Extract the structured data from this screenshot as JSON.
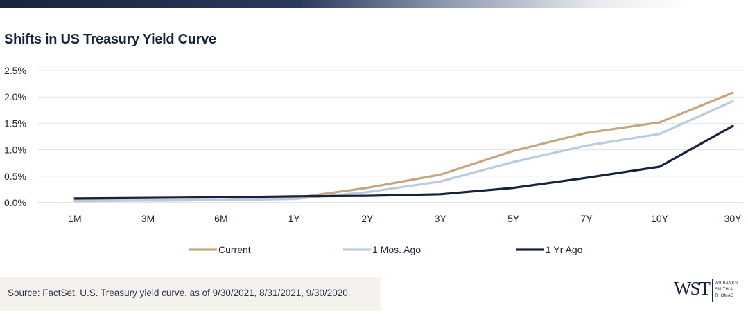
{
  "title": "Shifts in US Treasury Yield Curve",
  "source": "Source: FactSet. U.S. Treasury yield curve, as of 9/30/2021, 8/31/2021, 9/30/2020.",
  "logo": {
    "mark": "WST",
    "lines": [
      "WILBANKS",
      "SMITH &",
      "THOMAS"
    ]
  },
  "chart_data": {
    "type": "line",
    "title": "Shifts in US Treasury Yield Curve",
    "categories": [
      "1M",
      "3M",
      "6M",
      "1Y",
      "2Y",
      "3Y",
      "5Y",
      "7Y",
      "10Y",
      "30Y"
    ],
    "y_ticks": [
      "0.0%",
      "0.5%",
      "1.0%",
      "1.5%",
      "2.0%",
      "2.5%"
    ],
    "ylim": [
      0,
      2.5
    ],
    "y_unit": "%",
    "grid": true,
    "legend_position": "bottom",
    "series": [
      {
        "name": "Current",
        "color": "#c5a67f",
        "values": [
          0.04,
          0.04,
          0.05,
          0.09,
          0.28,
          0.53,
          0.98,
          1.32,
          1.52,
          2.08
        ]
      },
      {
        "name": "1 Mos. Ago",
        "color": "#b9cbe0",
        "values": [
          0.03,
          0.04,
          0.05,
          0.07,
          0.2,
          0.4,
          0.77,
          1.08,
          1.3,
          1.92
        ]
      },
      {
        "name": "1 Yr Ago",
        "color": "#17233b",
        "values": [
          0.08,
          0.09,
          0.1,
          0.12,
          0.13,
          0.16,
          0.28,
          0.47,
          0.68,
          1.45
        ]
      }
    ]
  }
}
